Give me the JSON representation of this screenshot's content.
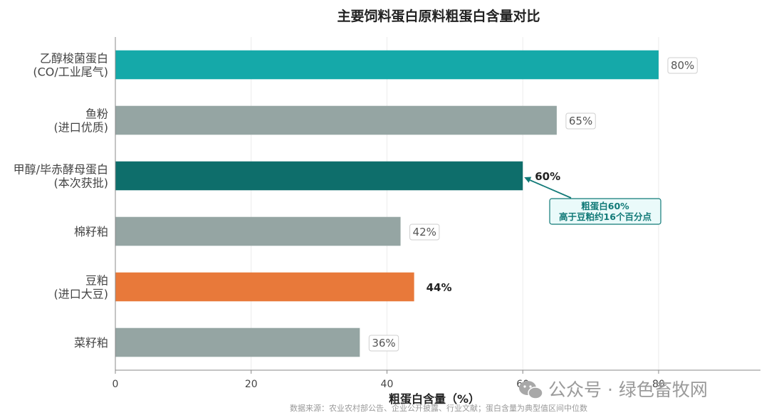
{
  "chart_data": {
    "type": "bar",
    "orientation": "horizontal",
    "title": "主要饲料蛋白原料粗蛋白含量对比",
    "xlabel": "粗蛋白含量（%）",
    "xlim": [
      0,
      95
    ],
    "xticks": [
      0,
      20,
      40,
      60,
      80
    ],
    "grid": "vertical",
    "categories": [
      [
        "乙醇梭菌蛋白",
        "(CO/工业尾气)"
      ],
      [
        "鱼粉",
        "(进口优质)"
      ],
      [
        "甲醇/毕赤酵母蛋白",
        "(本次获批)"
      ],
      [
        "棉籽粕"
      ],
      [
        "豆粕",
        "(进口大豆)"
      ],
      [
        "菜籽粕"
      ]
    ],
    "values": [
      80,
      65,
      60,
      42,
      44,
      36
    ],
    "value_labels": [
      "80%",
      "65%",
      "60%",
      "42%",
      "44%",
      "36%"
    ],
    "bar_colors": [
      "#15a9a9",
      "#95a5a3",
      "#0e6e6b",
      "#95a5a3",
      "#e8793a",
      "#95a5a3"
    ],
    "bold_labels": [
      false,
      false,
      true,
      false,
      true,
      false
    ],
    "annotation": {
      "text": [
        "粗蛋白60%",
        "高于豆粕约16个百分点"
      ],
      "target_index": 2,
      "target_value": 60,
      "color": "#127a78",
      "box_fill": "#eafafa"
    },
    "source": "数据来源：农业农村部公告、企业公开披露、行业文献；蛋白含量为典型值区间中位数"
  },
  "watermark": "公众号 · 绿色畜牧网"
}
